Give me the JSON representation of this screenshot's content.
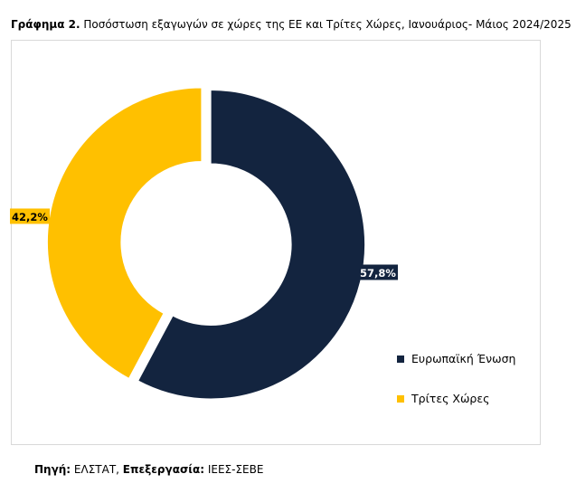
{
  "title": {
    "prefix": "Γράφημα 2.",
    "text": " Ποσόστωση εξαγωγών σε χώρες της ΕΕ και Τρίτες Χώρες, Ιανουάριος- Μάιος 2024/2025"
  },
  "source": {
    "label1": "Πηγή:",
    "value1": " ΕΛΣΤΑΤ, ",
    "label2": "Επεξεργασία:",
    "value2": " ΙΕΕΣ-ΣΕΒΕ"
  },
  "chart_data": {
    "type": "pie",
    "variant": "donut",
    "legend_position": "bottom-right",
    "slices": [
      {
        "name": "Ευρωπαϊκή Ένωση",
        "value": 57.8,
        "label": "57,8%",
        "color": "#13243f",
        "label_color": "#ffffff"
      },
      {
        "name": "Τρίτες Χώρες",
        "value": 42.2,
        "label": "42,2%",
        "color": "#ffc000",
        "label_color": "#000000"
      }
    ]
  }
}
